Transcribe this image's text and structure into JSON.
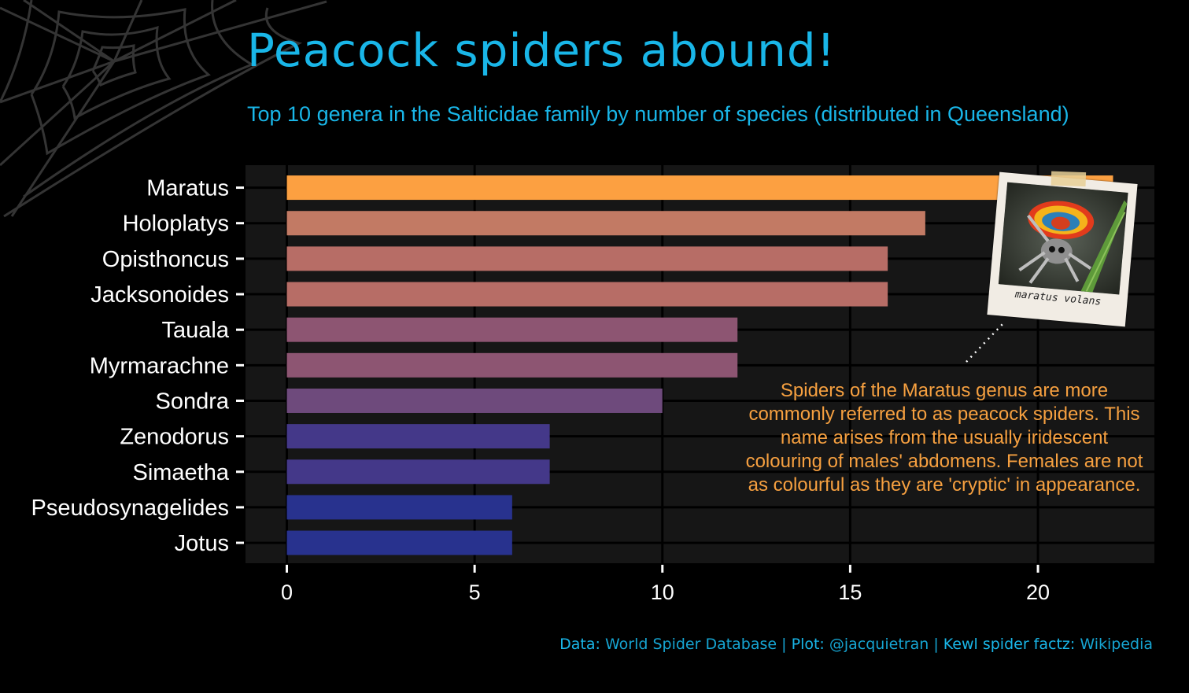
{
  "title": "Peacock spiders abound!",
  "subtitle": "Top 10 genera in the Salticidae family by number of species (distributed in Queensland)",
  "annotation": "Spiders of the Maratus genus are more commonly referred to as peacock spiders. This name arises from the usually iridescent colouring of males' abdomens. Females are not as colourful as they are 'cryptic' in appearance.",
  "photo_caption": "maratus volans",
  "caption": {
    "data_label": "Data:",
    "data_value": "World Spider Database",
    "plot_label": "Plot:",
    "plot_value": "@jacquietran",
    "factz_label": "Kewl spider factz:",
    "factz_value": "Wikipedia"
  },
  "colors": {
    "background": "#000000",
    "panel": "#161616",
    "title": "#19b6e8",
    "annotation": "#f6a040"
  },
  "chart_data": {
    "type": "bar",
    "orientation": "horizontal",
    "categories": [
      "Maratus",
      "Holoplatys",
      "Opisthoncus",
      "Jacksonoides",
      "Tauala",
      "Myrmarachne",
      "Sondra",
      "Zenodorus",
      "Simaetha",
      "Pseudosynagelides",
      "Jotus"
    ],
    "values": [
      22,
      17,
      16,
      16,
      12,
      12,
      10,
      7,
      7,
      6,
      6
    ],
    "bar_colors": [
      "#fca041",
      "#c27a64",
      "#b76d66",
      "#b76d66",
      "#8d5572",
      "#8d5572",
      "#6e4a7c",
      "#443889",
      "#443889",
      "#28328e",
      "#28328e"
    ],
    "xticks": [
      0,
      5,
      10,
      15,
      20
    ],
    "xlim": [
      -1.1,
      23.1
    ],
    "grid": true,
    "xlabel": "",
    "ylabel": ""
  }
}
